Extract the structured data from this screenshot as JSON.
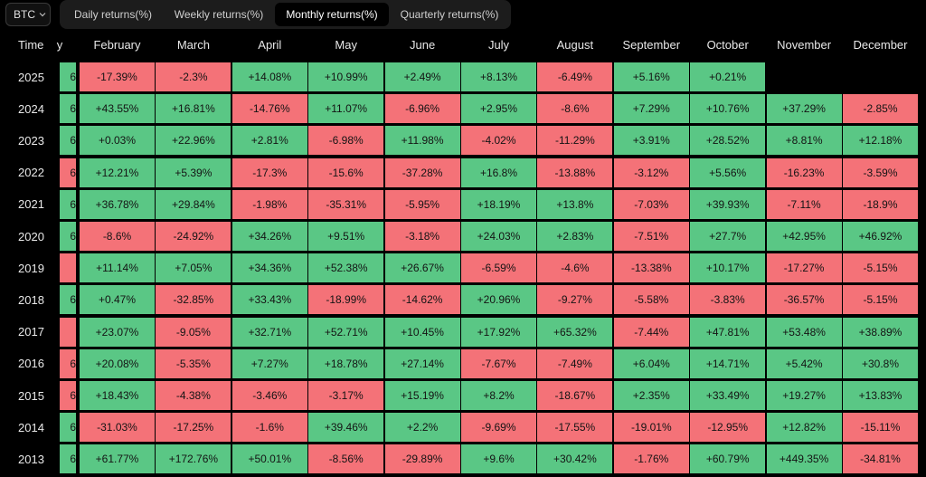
{
  "toolbar": {
    "asset": "BTC",
    "tabs": [
      {
        "label": "Daily returns(%)",
        "active": false
      },
      {
        "label": "Weekly returns(%)",
        "active": false
      },
      {
        "label": "Monthly returns(%)",
        "active": true
      },
      {
        "label": "Quarterly returns(%)",
        "active": false
      }
    ]
  },
  "table": {
    "time_label": "Time",
    "stub_header": "y",
    "months": [
      "February",
      "March",
      "April",
      "May",
      "June",
      "July",
      "August",
      "September",
      "October",
      "November",
      "December"
    ],
    "rows": [
      {
        "year": "2025",
        "stub": "6",
        "values": [
          "-17.39%",
          "-2.3%",
          "+14.08%",
          "+10.99%",
          "+2.49%",
          "+8.13%",
          "-6.49%",
          "+5.16%",
          "+0.21%",
          "",
          ""
        ]
      },
      {
        "year": "2024",
        "stub": "6",
        "values": [
          "+43.55%",
          "+16.81%",
          "-14.76%",
          "+11.07%",
          "-6.96%",
          "+2.95%",
          "-8.6%",
          "+7.29%",
          "+10.76%",
          "+37.29%",
          "-2.85%"
        ]
      },
      {
        "year": "2023",
        "stub": "6",
        "values": [
          "+0.03%",
          "+22.96%",
          "+2.81%",
          "-6.98%",
          "+11.98%",
          "-4.02%",
          "-11.29%",
          "+3.91%",
          "+28.52%",
          "+8.81%",
          "+12.18%"
        ]
      },
      {
        "year": "2022",
        "stub": "6",
        "values": [
          "+12.21%",
          "+5.39%",
          "-17.3%",
          "-15.6%",
          "-37.28%",
          "+16.8%",
          "-13.88%",
          "-3.12%",
          "+5.56%",
          "-16.23%",
          "-3.59%"
        ]
      },
      {
        "year": "2021",
        "stub": "6",
        "values": [
          "+36.78%",
          "+29.84%",
          "-1.98%",
          "-35.31%",
          "-5.95%",
          "+18.19%",
          "+13.8%",
          "-7.03%",
          "+39.93%",
          "-7.11%",
          "-18.9%"
        ]
      },
      {
        "year": "2020",
        "stub": "6",
        "values": [
          "-8.6%",
          "-24.92%",
          "+34.26%",
          "+9.51%",
          "-3.18%",
          "+24.03%",
          "+2.83%",
          "-7.51%",
          "+27.7%",
          "+42.95%",
          "+46.92%"
        ]
      },
      {
        "year": "2019",
        "stub": "",
        "values": [
          "+11.14%",
          "+7.05%",
          "+34.36%",
          "+52.38%",
          "+26.67%",
          "-6.59%",
          "-4.6%",
          "-13.38%",
          "+10.17%",
          "-17.27%",
          "-5.15%"
        ]
      },
      {
        "year": "2018",
        "stub": "6",
        "values": [
          "+0.47%",
          "-32.85%",
          "+33.43%",
          "-18.99%",
          "-14.62%",
          "+20.96%",
          "-9.27%",
          "-5.58%",
          "-3.83%",
          "-36.57%",
          "-5.15%"
        ]
      },
      {
        "year": "2017",
        "stub": "",
        "values": [
          "+23.07%",
          "-9.05%",
          "+32.71%",
          "+52.71%",
          "+10.45%",
          "+17.92%",
          "+65.32%",
          "-7.44%",
          "+47.81%",
          "+53.48%",
          "+38.89%"
        ]
      },
      {
        "year": "2016",
        "stub": "6",
        "values": [
          "+20.08%",
          "-5.35%",
          "+7.27%",
          "+18.78%",
          "+27.14%",
          "-7.67%",
          "-7.49%",
          "+6.04%",
          "+14.71%",
          "+5.42%",
          "+30.8%"
        ]
      },
      {
        "year": "2015",
        "stub": "6",
        "values": [
          "+18.43%",
          "-4.38%",
          "-3.46%",
          "-3.17%",
          "+15.19%",
          "+8.2%",
          "-18.67%",
          "+2.35%",
          "+33.49%",
          "+19.27%",
          "+13.83%"
        ]
      },
      {
        "year": "2014",
        "stub": "6",
        "values": [
          "-31.03%",
          "-17.25%",
          "-1.6%",
          "+39.46%",
          "+2.2%",
          "-9.69%",
          "-17.55%",
          "-19.01%",
          "-12.95%",
          "+12.82%",
          "-15.11%"
        ]
      },
      {
        "year": "2013",
        "stub": "6",
        "values": [
          "+61.77%",
          "+172.76%",
          "+50.01%",
          "-8.56%",
          "-29.89%",
          "+9.6%",
          "+30.42%",
          "-1.76%",
          "+60.79%",
          "+449.35%",
          "-34.81%"
        ]
      }
    ],
    "stub_colors": {
      "2025": "pos",
      "2024": "pos",
      "2023": "pos",
      "2022": "neg",
      "2021": "pos",
      "2020": "pos",
      "2019": "neg",
      "2018": "pos",
      "2017": "neg",
      "2016": "neg",
      "2015": "neg",
      "2014": "pos",
      "2013": "pos"
    }
  },
  "colors": {
    "positive": "#5ac785",
    "negative": "#f47278",
    "background": "#000000"
  }
}
